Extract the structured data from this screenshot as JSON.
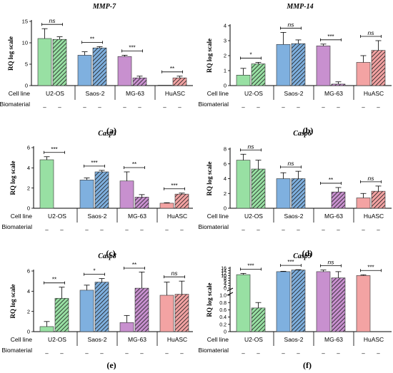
{
  "figure": {
    "row_labels": {
      "cell_line": "Cell line",
      "biomaterial": "Biomaterial"
    },
    "dash": "–"
  },
  "colors": {
    "U2-OS": "#98e0a3",
    "Saos-2": "#7fb0df",
    "MG-63": "#c890cf",
    "HuASC": "#f3a3a3",
    "hatch": "#1a1a1a"
  },
  "chart_data": [
    {
      "type": "bar",
      "panel": "(a)",
      "title": "MMP-7",
      "ylabel": "RQ log scale",
      "ylim": [
        0,
        15
      ],
      "yticks": [
        "0",
        "5",
        "10",
        "15"
      ],
      "groups": [
        "U2-OS",
        "Saos-2",
        "MG-63",
        "HuASC"
      ],
      "values": [
        [
          11.0,
          10.8
        ],
        [
          7.1,
          8.8
        ],
        [
          6.8,
          1.8
        ],
        [
          0.1,
          1.8
        ]
      ],
      "errors": [
        [
          2.3,
          0.6
        ],
        [
          0.8,
          0.3
        ],
        [
          0.3,
          0.4
        ],
        [
          0,
          0.4
        ]
      ],
      "significance": [
        "ns",
        "**",
        "***",
        "**"
      ],
      "grid": false
    },
    {
      "type": "bar",
      "panel": "(b)",
      "title": "MMP-14",
      "ylabel": "RQ log scale",
      "ylim": [
        0,
        4
      ],
      "yticks": [
        "0",
        "1",
        "2",
        "3",
        "4"
      ],
      "groups": [
        "U2-OS",
        "Saos-2",
        "MG-63",
        "HuASC"
      ],
      "values": [
        [
          0.7,
          1.45
        ],
        [
          2.75,
          2.8
        ],
        [
          2.65,
          0.1
        ],
        [
          1.55,
          2.35
        ]
      ],
      "errors": [
        [
          0.45,
          0.1
        ],
        [
          0.8,
          0.25
        ],
        [
          0.12,
          0.15
        ],
        [
          0.45,
          0.65
        ]
      ],
      "significance": [
        "*",
        "ns",
        "***",
        "ns"
      ],
      "grid": false
    },
    {
      "type": "bar",
      "panel": "(c)",
      "title": "Casp3",
      "ylabel": "RQ log scale",
      "ylim": [
        0,
        6
      ],
      "yticks": [
        "0",
        "2",
        "4",
        "6"
      ],
      "groups": [
        "U2-OS",
        "Saos-2",
        "MG-63",
        "HuASC"
      ],
      "values": [
        [
          4.8,
          0
        ],
        [
          2.8,
          3.6
        ],
        [
          2.7,
          1.1
        ],
        [
          0.5,
          1.4
        ]
      ],
      "errors": [
        [
          0.3,
          0
        ],
        [
          0.2,
          0.15
        ],
        [
          0.9,
          0.25
        ],
        [
          0.05,
          0.1
        ]
      ],
      "significance": [
        "***",
        "***",
        "**",
        "***"
      ],
      "grid": false
    },
    {
      "type": "bar",
      "panel": "(d)",
      "title": "Casp6",
      "ylabel": "RQ log scale",
      "ylim": [
        0,
        8
      ],
      "yticks": [
        "0",
        "2",
        "4",
        "6",
        "8"
      ],
      "groups": [
        "U2-OS",
        "Saos-2",
        "MG-63",
        "HuASC"
      ],
      "values": [
        [
          6.5,
          5.3
        ],
        [
          4.0,
          4.0
        ],
        [
          0,
          2.2
        ],
        [
          1.4,
          2.3
        ]
      ],
      "errors": [
        [
          0.8,
          1.2
        ],
        [
          0.8,
          1.0
        ],
        [
          0,
          0.6
        ],
        [
          0.6,
          0.7
        ]
      ],
      "significance": [
        "ns",
        "ns",
        "**",
        "ns"
      ],
      "grid": false
    },
    {
      "type": "bar",
      "panel": "(e)",
      "title": "Casp8",
      "ylabel": "RQ log scale",
      "ylim": [
        0,
        6
      ],
      "yticks": [
        "0",
        "2",
        "4",
        "6"
      ],
      "groups": [
        "U2-OS",
        "Saos-2",
        "MG-63",
        "HuASC"
      ],
      "values": [
        [
          0.5,
          3.3
        ],
        [
          4.1,
          4.9
        ],
        [
          0.9,
          4.3
        ],
        [
          3.6,
          3.7
        ]
      ],
      "errors": [
        [
          0.5,
          1.1
        ],
        [
          0.5,
          0.35
        ],
        [
          0.7,
          1.6
        ],
        [
          1.3,
          1.3
        ]
      ],
      "significance": [
        "**",
        "*",
        "**",
        "ns"
      ],
      "grid": false
    },
    {
      "type": "bar",
      "panel": "(f)",
      "title": "Casp9",
      "ylabel": "RQ log scale",
      "broken_axis": true,
      "ylim_lower": [
        0,
        1.0
      ],
      "ylim_upper": [
        0,
        16
      ],
      "yticks_lower": [
        "0",
        "0.2",
        "0.4",
        "0.6",
        "0.8",
        "1.0"
      ],
      "yticks_upper": [
        "0",
        "2",
        "4",
        "6",
        "8",
        "10",
        "12",
        "14",
        "16"
      ],
      "groups": [
        "U2-OS",
        "Saos-2",
        "MG-63",
        "HuASC"
      ],
      "values": [
        [
          10.8,
          0.65
        ],
        [
          13.2,
          14.5
        ],
        [
          13.2,
          8.2
        ],
        [
          10.1,
          0
        ]
      ],
      "errors": [
        [
          1.0,
          0.15
        ],
        [
          0.3,
          0.3
        ],
        [
          1.3,
          5.0
        ],
        [
          0.6,
          0
        ]
      ],
      "significance": [
        "***",
        "***",
        "ns",
        "***"
      ],
      "grid": false
    }
  ]
}
